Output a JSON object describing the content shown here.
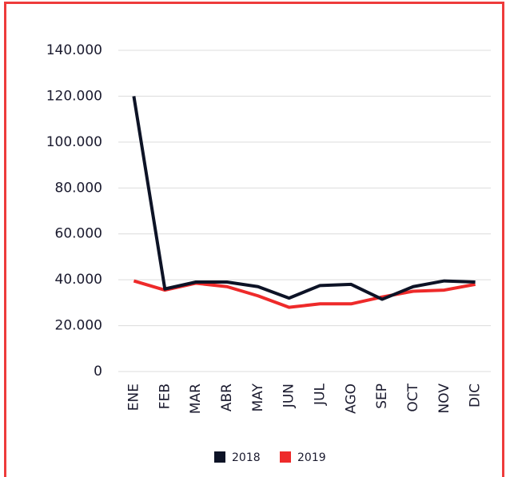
{
  "chart_data": {
    "type": "line",
    "categories": [
      "ENE",
      "FEB",
      "MAR",
      "ABR",
      "MAY",
      "JUN",
      "JUL",
      "AGO",
      "SEP",
      "OCT",
      "NOV",
      "DIC"
    ],
    "series": [
      {
        "name": "2018",
        "color": "#0d1326",
        "values": [
          120000,
          36000,
          39000,
          39000,
          37000,
          32000,
          37500,
          38000,
          31500,
          37000,
          39500,
          39000
        ]
      },
      {
        "name": "2019",
        "color": "#ee2a2a",
        "values": [
          39500,
          35500,
          38500,
          37000,
          33000,
          28000,
          29500,
          29500,
          32500,
          35000,
          35500,
          38000
        ]
      }
    ],
    "ylim": [
      0,
      140000
    ],
    "yticks": [
      {
        "value": 0,
        "label": "0"
      },
      {
        "value": 20000,
        "label": "20.000"
      },
      {
        "value": 40000,
        "label": "40.000"
      },
      {
        "value": 60000,
        "label": "60.000"
      },
      {
        "value": 80000,
        "label": "80.000"
      },
      {
        "value": 100000,
        "label": "100.000"
      },
      {
        "value": 120000,
        "label": "120.000"
      },
      {
        "value": 140000,
        "label": "140.000"
      }
    ],
    "grid": true,
    "legend": "bottom"
  }
}
